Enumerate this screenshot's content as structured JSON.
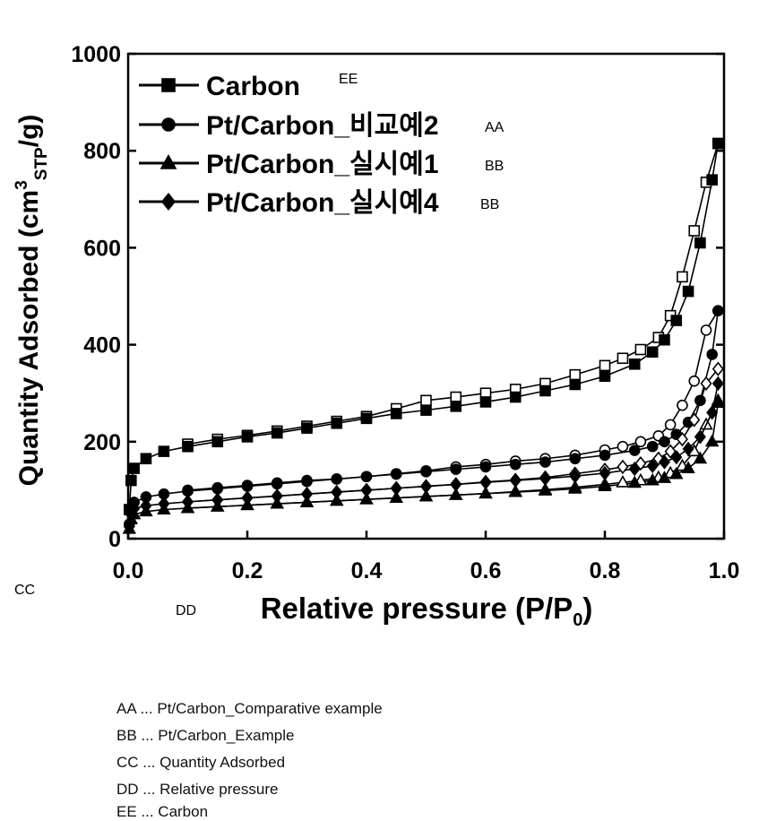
{
  "chart_data": {
    "type": "scatter",
    "title": "",
    "ylabel": "Quantity Adsorbed (cm3STP/g)",
    "xlabel": "Relative pressure (P/P0)",
    "xlim": [
      0.0,
      1.0
    ],
    "ylim": [
      0,
      1000
    ],
    "xticks": [
      "0.0",
      "0.2",
      "0.4",
      "0.6",
      "0.8",
      "1.0"
    ],
    "yticks": [
      "0",
      "200",
      "400",
      "600",
      "800",
      "1000"
    ],
    "legend_position": "top-left",
    "series": [
      {
        "name": "Carbon",
        "tag": "EE",
        "marker": "square",
        "adsorption": {
          "x": [
            0.002,
            0.005,
            0.01,
            0.03,
            0.06,
            0.1,
            0.15,
            0.2,
            0.25,
            0.3,
            0.35,
            0.4,
            0.45,
            0.5,
            0.55,
            0.6,
            0.65,
            0.7,
            0.75,
            0.8,
            0.85,
            0.88,
            0.9,
            0.92,
            0.94,
            0.96,
            0.98,
            0.99
          ],
          "y": [
            60,
            120,
            145,
            165,
            180,
            190,
            200,
            210,
            218,
            228,
            238,
            248,
            258,
            265,
            273,
            282,
            292,
            305,
            318,
            335,
            360,
            385,
            410,
            450,
            510,
            610,
            740,
            815
          ]
        },
        "desorption": {
          "x": [
            0.99,
            0.97,
            0.95,
            0.93,
            0.91,
            0.89,
            0.86,
            0.83,
            0.8,
            0.75,
            0.7,
            0.65,
            0.6,
            0.55,
            0.5,
            0.45,
            0.4,
            0.35,
            0.3,
            0.25,
            0.2,
            0.15,
            0.1
          ],
          "y": [
            815,
            735,
            635,
            540,
            460,
            415,
            390,
            372,
            357,
            338,
            320,
            308,
            300,
            292,
            285,
            268,
            252,
            242,
            232,
            222,
            213,
            205,
            195
          ]
        }
      },
      {
        "name": "Pt/Carbon_비교예2",
        "tag": "AA",
        "marker": "circle",
        "adsorption": {
          "x": [
            0.002,
            0.005,
            0.01,
            0.03,
            0.06,
            0.1,
            0.15,
            0.2,
            0.25,
            0.3,
            0.35,
            0.4,
            0.45,
            0.5,
            0.55,
            0.6,
            0.65,
            0.7,
            0.75,
            0.8,
            0.85,
            0.88,
            0.9,
            0.92,
            0.94,
            0.96,
            0.98,
            0.99
          ],
          "y": [
            30,
            60,
            75,
            86,
            92,
            98,
            103,
            108,
            113,
            118,
            123,
            128,
            133,
            138,
            143,
            148,
            153,
            158,
            165,
            172,
            182,
            190,
            200,
            215,
            240,
            285,
            380,
            470
          ]
        },
        "desorption": {
          "x": [
            0.99,
            0.97,
            0.95,
            0.93,
            0.91,
            0.89,
            0.86,
            0.83,
            0.8,
            0.75,
            0.7,
            0.65,
            0.6,
            0.55,
            0.5,
            0.45,
            0.4,
            0.35,
            0.3,
            0.25,
            0.2,
            0.15,
            0.1
          ],
          "y": [
            470,
            430,
            325,
            275,
            235,
            212,
            200,
            190,
            183,
            172,
            165,
            160,
            153,
            148,
            140,
            134,
            128,
            123,
            120,
            115,
            110,
            105,
            100
          ]
        }
      },
      {
        "name": "Pt/Carbon_실시예1",
        "tag": "BB",
        "marker": "triangle",
        "adsorption": {
          "x": [
            0.002,
            0.005,
            0.01,
            0.03,
            0.06,
            0.1,
            0.15,
            0.2,
            0.25,
            0.3,
            0.35,
            0.4,
            0.45,
            0.5,
            0.55,
            0.6,
            0.65,
            0.7,
            0.75,
            0.8,
            0.85,
            0.88,
            0.9,
            0.92,
            0.94,
            0.96,
            0.98,
            0.99
          ],
          "y": [
            20,
            40,
            50,
            56,
            60,
            63,
            66,
            69,
            72,
            75,
            78,
            81,
            84,
            87,
            90,
            93,
            96,
            99,
            103,
            108,
            115,
            120,
            125,
            133,
            145,
            165,
            200,
            280
          ]
        },
        "desorption": {
          "x": [
            0.99,
            0.97,
            0.95,
            0.93,
            0.91,
            0.89,
            0.86,
            0.83,
            0.8,
            0.75,
            0.7,
            0.65,
            0.6,
            0.55,
            0.5,
            0.45,
            0.4,
            0.35,
            0.3,
            0.25,
            0.2,
            0.15,
            0.1
          ],
          "y": [
            285,
            235,
            180,
            150,
            135,
            126,
            120,
            116,
            112,
            106,
            101,
            97,
            93,
            90,
            87,
            84,
            81,
            78,
            75,
            72,
            69,
            66,
            63
          ]
        }
      },
      {
        "name": "Pt/Carbon_실시예4",
        "tag": "BB",
        "marker": "diamond",
        "adsorption": {
          "x": [
            0.002,
            0.005,
            0.01,
            0.03,
            0.06,
            0.1,
            0.15,
            0.2,
            0.25,
            0.3,
            0.35,
            0.4,
            0.45,
            0.5,
            0.55,
            0.6,
            0.65,
            0.7,
            0.75,
            0.8,
            0.85,
            0.88,
            0.9,
            0.92,
            0.94,
            0.96,
            0.98,
            0.99
          ],
          "y": [
            25,
            50,
            62,
            68,
            72,
            76,
            80,
            84,
            88,
            92,
            96,
            100,
            104,
            108,
            112,
            116,
            120,
            124,
            129,
            135,
            144,
            150,
            158,
            168,
            185,
            210,
            260,
            320
          ]
        },
        "desorption": {
          "x": [
            0.99,
            0.97,
            0.95,
            0.93,
            0.91,
            0.89,
            0.86,
            0.83,
            0.8,
            0.75,
            0.7,
            0.65,
            0.6,
            0.55,
            0.5,
            0.45,
            0.4,
            0.35,
            0.3,
            0.25,
            0.2,
            0.15,
            0.1
          ],
          "y": [
            350,
            320,
            245,
            205,
            180,
            165,
            155,
            148,
            142,
            134,
            126,
            121,
            117,
            112,
            108,
            104,
            100,
            96,
            92,
            88,
            84,
            80,
            76
          ]
        }
      }
    ]
  },
  "footnotes": [
    "AA ... Pt/Carbon_Comparative example",
    "BB ... Pt/Carbon_Example",
    "CC ... Quantity Adsorbed",
    "DD ... Relative pressure",
    "EE ... Carbon"
  ],
  "tags": {
    "cc": "CC",
    "dd": "DD"
  },
  "colors": {
    "ink": "#000000",
    "background": "#ffffff"
  }
}
